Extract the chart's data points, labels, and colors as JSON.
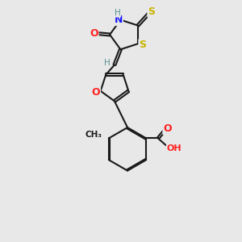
{
  "bg_color": "#e8e8e8",
  "bond_color": "#1a1a1a",
  "bond_width": 1.5,
  "dbo": 0.07,
  "atom_colors": {
    "N": "#1a1aff",
    "O": "#ff2020",
    "S": "#c8b400",
    "H": "#5a9090",
    "C": "#1a1a1a"
  },
  "font_size": 8.5,
  "fig_size": [
    3.0,
    3.0
  ],
  "dpi": 100
}
